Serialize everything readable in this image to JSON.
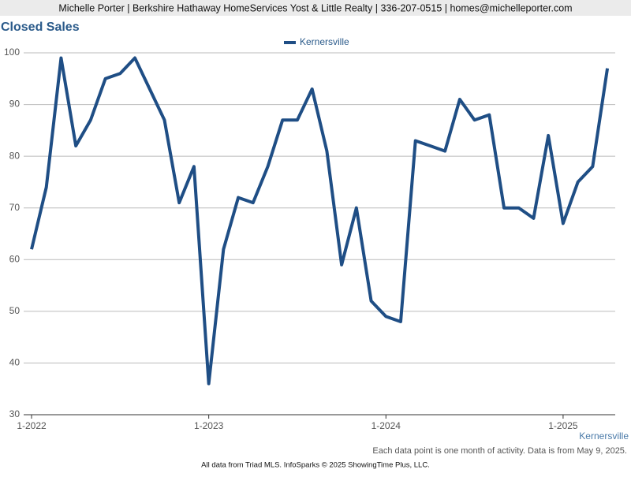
{
  "chart_data": {
    "type": "line",
    "header": "Michelle Porter | Berkshire Hathaway HomeServices Yost & Little Realty | 336-207-0515 | homes@michelleporter.com",
    "title": "Closed Sales",
    "categories": [
      "1-2022",
      null,
      null,
      null,
      null,
      null,
      null,
      null,
      null,
      null,
      null,
      null,
      "1-2023",
      null,
      null,
      null,
      null,
      null,
      null,
      null,
      null,
      null,
      null,
      null,
      "1-2024",
      null,
      null,
      null,
      null,
      null,
      null,
      null,
      null,
      null,
      null,
      null,
      "1-2025",
      null,
      null,
      null
    ],
    "series": [
      {
        "name": "Kernersville",
        "color": "#1f4e85",
        "values": [
          62,
          74,
          99,
          82,
          87,
          95,
          96,
          99,
          93,
          87,
          71,
          78,
          36,
          62,
          72,
          71,
          78,
          87,
          87,
          93,
          81,
          59,
          70,
          52,
          49,
          48,
          83,
          82,
          81,
          91,
          87,
          88,
          70,
          70,
          68,
          84,
          67,
          75,
          78,
          97
        ]
      }
    ],
    "ylim": [
      30,
      100
    ],
    "yticks": [
      30,
      40,
      50,
      60,
      70,
      80,
      90,
      100
    ],
    "grid": true,
    "xlabel": "Kernersville",
    "note": "Each data point is one month of activity. Data is from May 9, 2025.",
    "footer": "All data from Triad MLS. InfoSparks © 2025 ShowingTime Plus, LLC."
  }
}
